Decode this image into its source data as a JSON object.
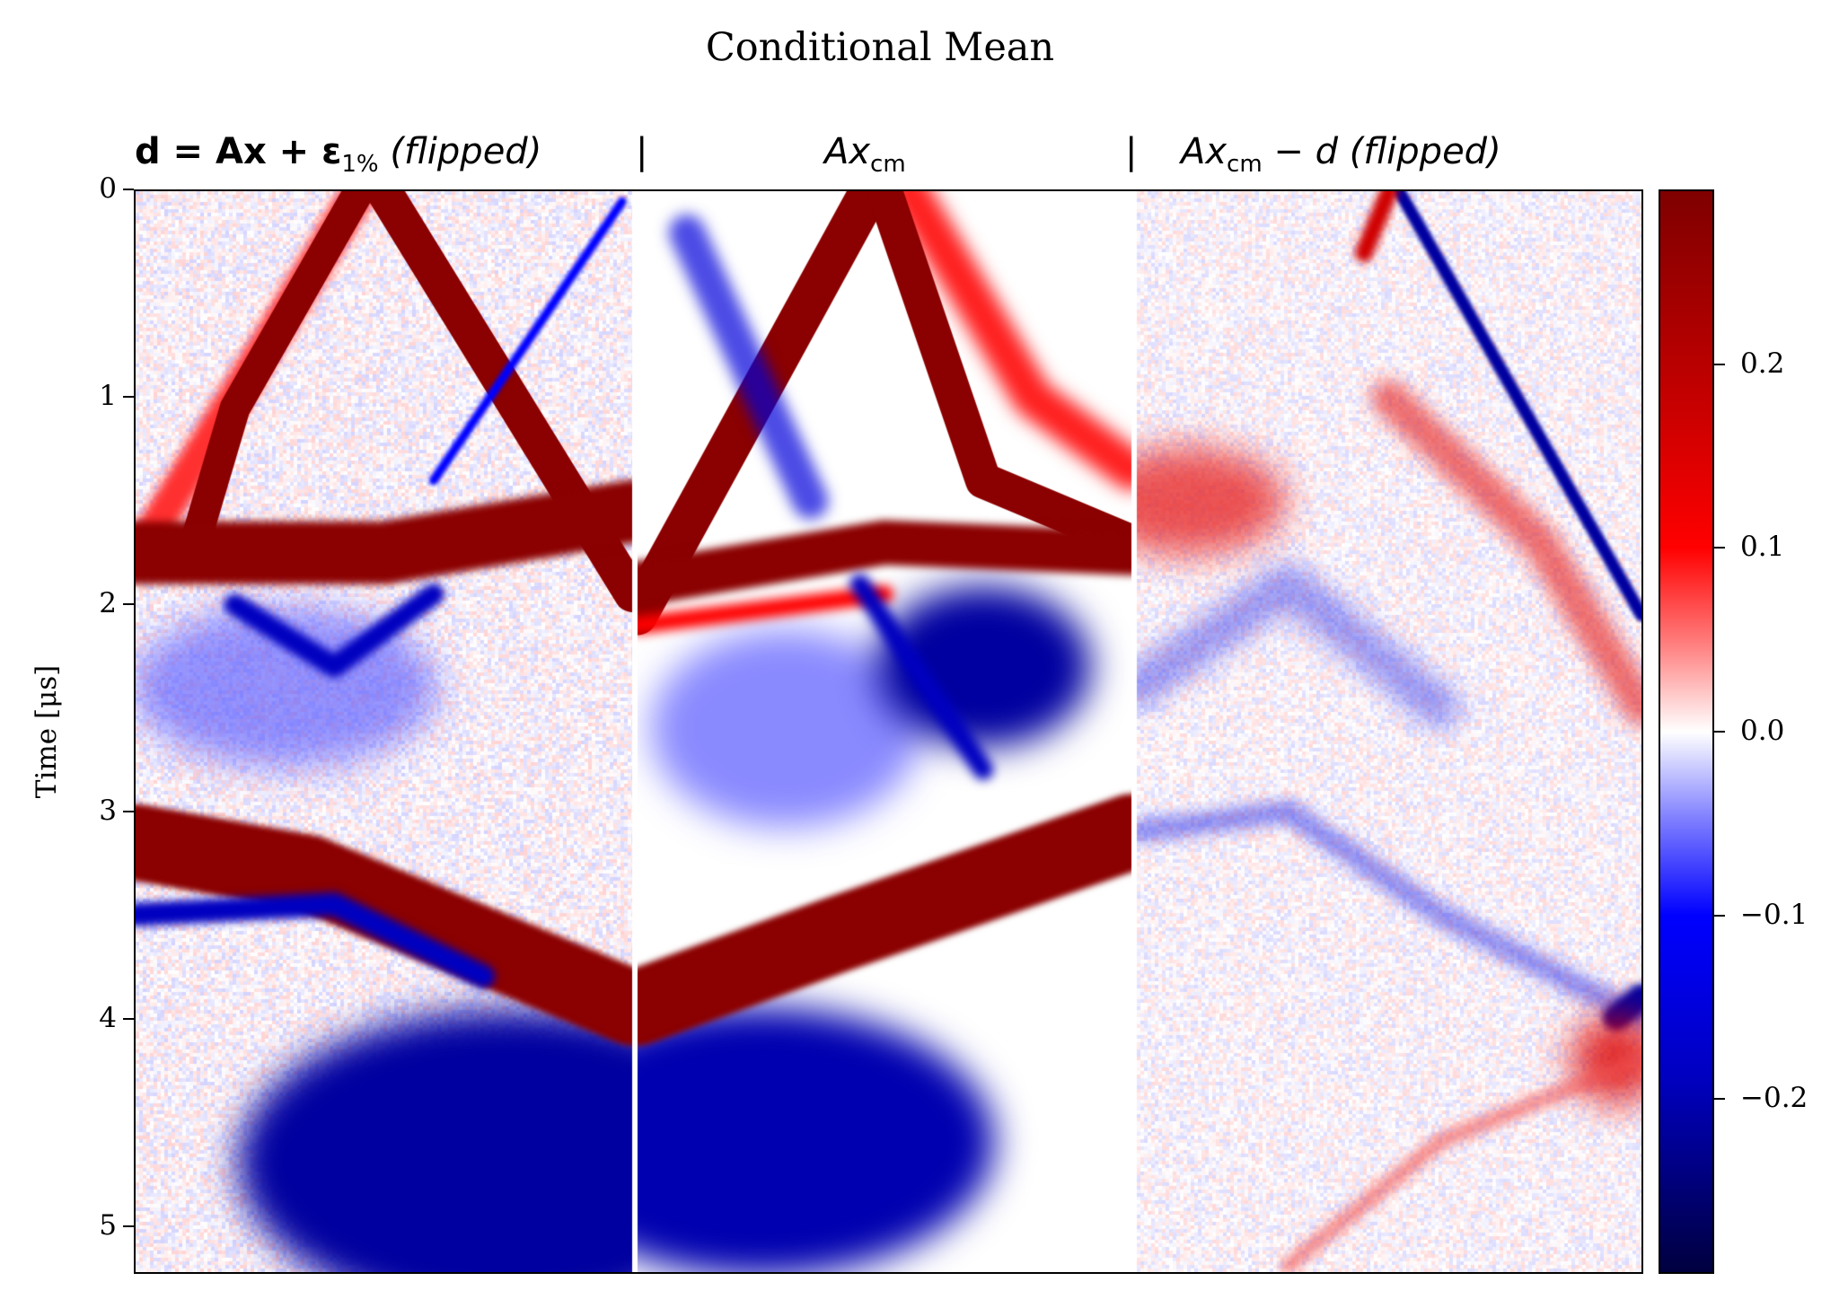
{
  "chart_data": {
    "type": "heatmap",
    "title": "Conditional Mean",
    "panels": [
      {
        "title": "d = Ax + ε_1% (flipped)",
        "title_main": "d = Ax + ε",
        "title_sub": "1%",
        "title_suffix": " (flipped)"
      },
      {
        "title": "Ax_cm",
        "title_main": "Ax",
        "title_sub": "cm",
        "title_suffix": ""
      },
      {
        "title": "Ax_cm − d (flipped)",
        "title_main": "Ax",
        "title_sub": "cm",
        "title_suffix": " − d (flipped)"
      }
    ],
    "separator": "|",
    "ylabel": "Time [μs]",
    "ylim": [
      5.23,
      0
    ],
    "yticks": [
      "0",
      "1",
      "2",
      "3",
      "4",
      "5"
    ],
    "yticks_values": [
      0,
      1,
      2,
      3,
      4,
      5
    ],
    "colorbar": {
      "cmap": "seismic",
      "range": [
        -0.295,
        0.295
      ],
      "ticks": [
        "0.2",
        "0.1",
        "0.0",
        "−0.1",
        "−0.2"
      ],
      "tick_values": [
        0.2,
        0.1,
        0.0,
        -0.1,
        -0.2
      ]
    }
  }
}
